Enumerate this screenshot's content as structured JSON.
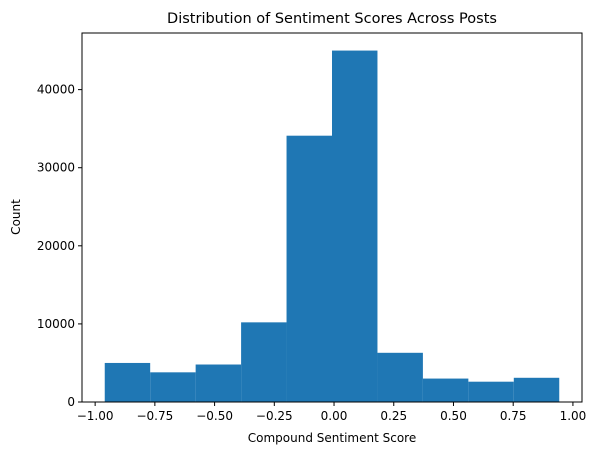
{
  "chart_data": {
    "type": "bar",
    "title": "Distribution of Sentiment Scores Across Posts",
    "xlabel": "Compound Sentiment Score",
    "ylabel": "Count",
    "bin_edges": [
      -0.9598,
      -0.7696,
      -0.5793,
      -0.389,
      -0.1988,
      -0.0085,
      0.1818,
      0.372,
      0.5623,
      0.7525,
      0.9428
    ],
    "values": [
      5000,
      3800,
      4800,
      10200,
      34100,
      45000,
      6300,
      3000,
      2600,
      3100
    ],
    "xlim": [
      -1.055,
      1.038
    ],
    "ylim": [
      0,
      47250
    ],
    "xticks": [
      -1.0,
      -0.75,
      -0.5,
      -0.25,
      0.0,
      0.25,
      0.5,
      0.75,
      1.0
    ],
    "xtick_labels": [
      "−1.00",
      "−0.75",
      "−0.50",
      "−0.25",
      "0.00",
      "0.25",
      "0.50",
      "0.75",
      "1.00"
    ],
    "yticks": [
      0,
      10000,
      20000,
      30000,
      40000
    ],
    "ytick_labels": [
      "0",
      "10000",
      "20000",
      "30000",
      "40000"
    ],
    "bar_color": "#1f77b4",
    "grid": false,
    "legend": "none"
  }
}
